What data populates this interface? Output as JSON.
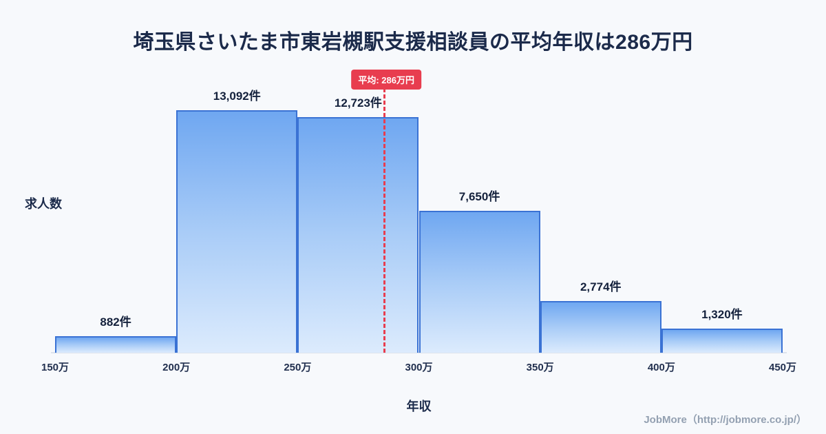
{
  "title": "埼玉県さいたま市東岩槻駅支援相談員の平均年収は286万円",
  "footer": "JobMore（http://jobmore.co.jp/）",
  "chart_data": {
    "type": "bar",
    "title": "埼玉県さいたま市東岩槻駅支援相談員の平均年収は286万円",
    "xlabel": "年収",
    "ylabel": "求人数",
    "x_ticks": [
      "150万",
      "200万",
      "250万",
      "300万",
      "350万",
      "400万",
      "450万"
    ],
    "x_range_man": [
      150,
      450
    ],
    "bin_width_man": 50,
    "bins_man": [
      [
        150,
        200
      ],
      [
        200,
        250
      ],
      [
        250,
        300
      ],
      [
        300,
        350
      ],
      [
        350,
        400
      ],
      [
        400,
        450
      ]
    ],
    "values": [
      882,
      13092,
      12723,
      7650,
      2774,
      1320
    ],
    "bar_labels": [
      "882件",
      "13,092件",
      "12,723件",
      "7,650件",
      "2,774件",
      "1,320件"
    ],
    "average_line": {
      "x_man": 286,
      "label": "平均: 286万円",
      "color": "#e83d4f"
    },
    "legend": "none",
    "grid": "off",
    "colors": {
      "bar_gradient_top": "#6fa7f1",
      "bar_gradient_bottom": "#dcebfd",
      "bar_border": "#3a72d4",
      "background": "#f7f9fc",
      "title_text": "#1b2a4a"
    }
  }
}
